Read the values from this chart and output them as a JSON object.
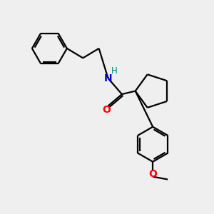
{
  "background_color": "#efefef",
  "bond_color": "#000000",
  "N_color": "#0000cc",
  "H_color": "#008080",
  "O_color": "#ff0000",
  "line_width": 1.6,
  "figsize": [
    3.0,
    3.0
  ],
  "dpi": 100,
  "xlim": [
    0,
    10
  ],
  "ylim": [
    0,
    10
  ]
}
